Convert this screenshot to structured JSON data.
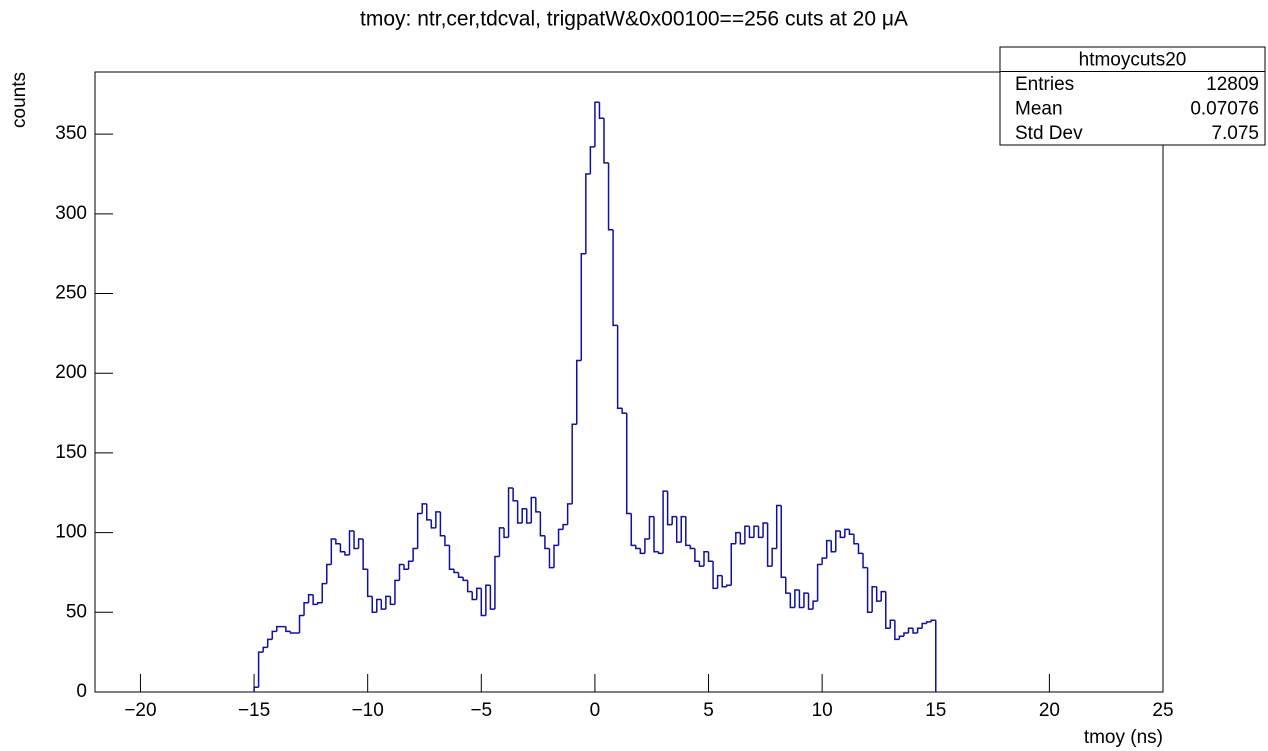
{
  "chart_data": {
    "type": "histogram",
    "title": "tmoy: ntr,cer,tdcval, trigpatW&0x00100==256  cuts at 20 μA",
    "x_label": "tmoy (ns)",
    "y_label": "counts",
    "color": "#1010a0",
    "bins": [
      -15,
      -14.8,
      -14.6,
      -14.4,
      -14.2,
      -14,
      -13.8,
      -13.6,
      -13.4,
      -13.2,
      -13,
      -12.8,
      -12.6,
      -12.4,
      -12.2,
      -12,
      -11.8,
      -11.6,
      -11.4,
      -11.2,
      -11,
      -10.8,
      -10.6,
      -10.4,
      -10.2,
      -10,
      -9.8,
      -9.6,
      -9.4,
      -9.2,
      -9,
      -8.8,
      -8.6,
      -8.4,
      -8.2,
      -8,
      -7.8,
      -7.6,
      -7.4,
      -7.2,
      -7,
      -6.8,
      -6.6,
      -6.4,
      -6.2,
      -6,
      -5.8,
      -5.6,
      -5.4,
      -5.2,
      -5,
      -4.8,
      -4.6,
      -4.4,
      -4.2,
      -4,
      -3.8,
      -3.6,
      -3.4,
      -3.2,
      -3,
      -2.8,
      -2.6,
      -2.4,
      -2.2,
      -2,
      -1.8,
      -1.6,
      -1.4,
      -1.2,
      -1,
      -0.8,
      -0.6,
      -0.4,
      -0.2,
      0,
      0.2,
      0.4,
      0.6,
      0.8,
      1,
      1.2,
      1.4,
      1.6,
      1.8,
      2,
      2.2,
      2.4,
      2.6,
      2.8,
      3,
      3.2,
      3.4,
      3.6,
      3.8,
      4,
      4.2,
      4.4,
      4.6,
      4.8,
      5,
      5.2,
      5.4,
      5.6,
      5.8,
      6,
      6.2,
      6.4,
      6.6,
      6.8,
      7,
      7.2,
      7.4,
      7.6,
      7.8,
      8,
      8.2,
      8.4,
      8.6,
      8.8,
      9,
      9.2,
      9.4,
      9.6,
      9.8,
      10,
      10.2,
      10.4,
      10.6,
      10.8,
      11,
      11.2,
      11.4,
      11.6,
      11.8,
      12,
      12.2,
      12.4,
      12.6,
      12.8,
      13,
      13.2,
      13.4,
      13.6,
      13.8,
      14,
      14.2,
      14.4,
      14.6,
      14.8,
      15
    ],
    "values": [
      3,
      25,
      28,
      33,
      38,
      41,
      41,
      38,
      37,
      37,
      48,
      56,
      61,
      55,
      56,
      68,
      80,
      96,
      93,
      88,
      86,
      101,
      90,
      96,
      77,
      60,
      50,
      58,
      52,
      60,
      55,
      70,
      80,
      77,
      82,
      90,
      112,
      118,
      108,
      103,
      113,
      98,
      92,
      77,
      75,
      72,
      70,
      63,
      58,
      65,
      48,
      67,
      52,
      85,
      103,
      97,
      128,
      120,
      106,
      115,
      106,
      122,
      113,
      98,
      90,
      78,
      92,
      102,
      105,
      118,
      168,
      208,
      275,
      325,
      342,
      370,
      360,
      332,
      290,
      230,
      178,
      175,
      112,
      92,
      90,
      87,
      96,
      110,
      88,
      87,
      126,
      105,
      110,
      94,
      110,
      92,
      90,
      82,
      79,
      88,
      82,
      65,
      73,
      66,
      67,
      93,
      100,
      93,
      104,
      97,
      104,
      97,
      106,
      79,
      90,
      117,
      72,
      62,
      53,
      64,
      53,
      62,
      52,
      57,
      80,
      84,
      95,
      88,
      101,
      97,
      102,
      99,
      93,
      87,
      78,
      50,
      66,
      57,
      63,
      40,
      45,
      33,
      35,
      37,
      40,
      37,
      40,
      43,
      44,
      45
    ],
    "xlim": [
      -22,
      25
    ],
    "xticks": [
      {
        "value": -20,
        "label": "−20"
      },
      {
        "value": -15,
        "label": "−15"
      },
      {
        "value": -10,
        "label": "−10"
      },
      {
        "value": -5,
        "label": "−5"
      },
      0,
      5,
      10,
      15,
      20,
      25
    ],
    "ylim": [
      0,
      389
    ],
    "yticks": [
      0,
      50,
      100,
      150,
      200,
      250,
      300,
      350
    ],
    "stats": {
      "name": "htmoycuts20",
      "rows": [
        [
          "Entries",
          12809
        ],
        [
          "Mean",
          0.07076
        ],
        [
          "Std Dev",
          7.075
        ]
      ]
    }
  }
}
